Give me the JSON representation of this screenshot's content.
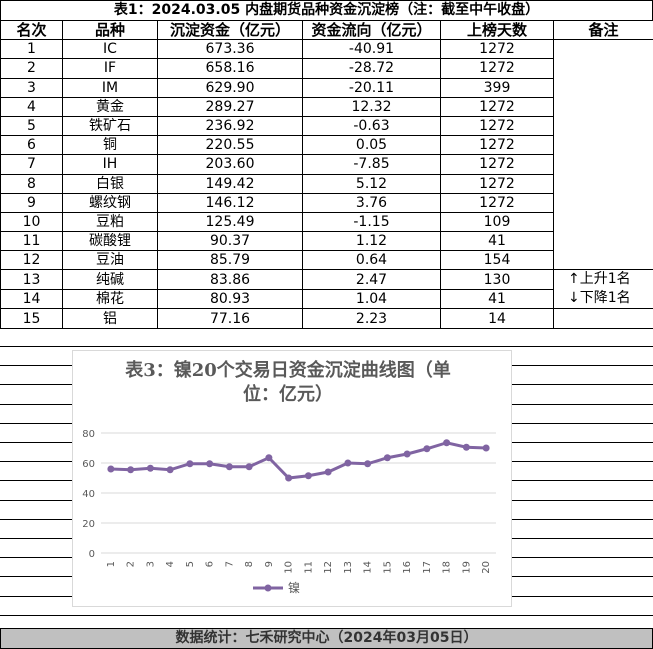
{
  "title": "表1：2024.03.05 内盘期货品种资金沉淀榜（注：截至中午收盘）",
  "table": {
    "headers": [
      "名次",
      "品种",
      "沉淀资金（亿元）",
      "资金流向（亿元）",
      "上榜天数",
      "备注"
    ],
    "rows": [
      [
        "1",
        "IC",
        "673.36",
        "-40.91",
        "1272"
      ],
      [
        "2",
        "IF",
        "658.16",
        "-28.72",
        "1272"
      ],
      [
        "3",
        "IM",
        "629.90",
        "-20.11",
        "399"
      ],
      [
        "4",
        "黄金",
        "289.27",
        "12.32",
        "1272"
      ],
      [
        "5",
        "铁矿石",
        "236.92",
        "-0.63",
        "1272"
      ],
      [
        "6",
        "铜",
        "220.55",
        "0.05",
        "1272"
      ],
      [
        "7",
        "IH",
        "203.60",
        "-7.85",
        "1272"
      ],
      [
        "8",
        "白银",
        "149.42",
        "5.12",
        "1272"
      ],
      [
        "9",
        "螺纹钢",
        "146.12",
        "3.76",
        "1272"
      ],
      [
        "10",
        "豆粕",
        "125.49",
        "-1.15",
        "109"
      ],
      [
        "11",
        "碳酸锂",
        "90.37",
        "1.12",
        "41"
      ],
      [
        "12",
        "豆油",
        "85.79",
        "0.64",
        "154"
      ],
      [
        "13",
        "纯碱",
        "83.86",
        "2.47",
        "130"
      ],
      [
        "14",
        "棉花",
        "80.93",
        "1.04",
        "41"
      ],
      [
        "15",
        "铝",
        "77.16",
        "2.23",
        "14"
      ]
    ],
    "notes": [
      "↑上升1名",
      "↓下降1名"
    ]
  },
  "chart_data": {
    "type": "line",
    "title": "表3：镍20个交易日资金沉淀曲线图（单位：亿元）",
    "categories": [
      "1",
      "2",
      "3",
      "4",
      "5",
      "6",
      "7",
      "8",
      "9",
      "10",
      "11",
      "12",
      "13",
      "14",
      "15",
      "16",
      "17",
      "18",
      "19",
      "20"
    ],
    "series": [
      {
        "name": "镍",
        "color": "#8064a2",
        "values": [
          56,
          55.5,
          56.5,
          55.5,
          59.5,
          59.5,
          57.5,
          57.5,
          63.5,
          50,
          51.5,
          54,
          60,
          59.5,
          63.5,
          66,
          69.5,
          73.5,
          70.5,
          70
        ]
      }
    ],
    "ylim": [
      0,
      80
    ],
    "yticks": [
      0,
      20,
      40,
      60,
      80
    ],
    "grid": true
  },
  "footer": "数据统计：七禾研究中心（2024年03月05日）"
}
